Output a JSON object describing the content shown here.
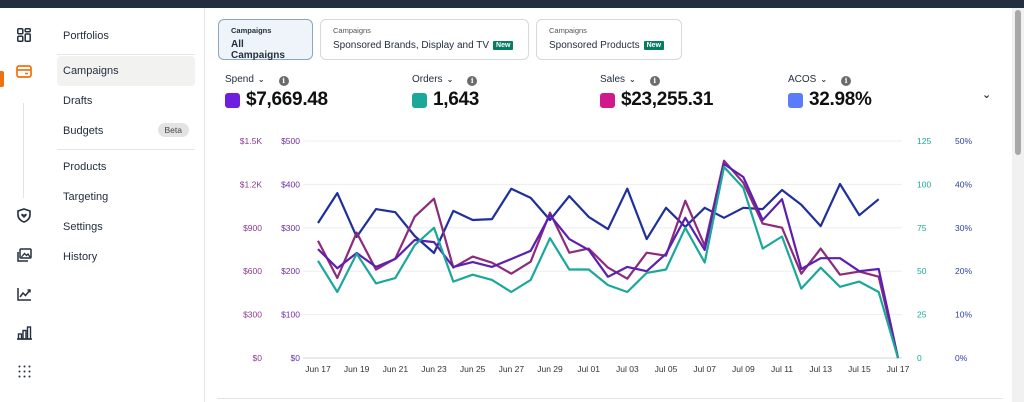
{
  "rail": {
    "icons": [
      "dashboard-icon",
      "campaigns-icon",
      "brand-protection-icon",
      "media-icon",
      "reports-icon",
      "measurement-icon",
      "apps-grid-icon"
    ]
  },
  "subnav": {
    "items": [
      {
        "label": "Portfolios"
      },
      {
        "label": "Campaigns",
        "active": true
      },
      {
        "label": "Drafts"
      },
      {
        "label": "Budgets",
        "badge": "Beta"
      },
      {
        "label": "Products"
      },
      {
        "label": "Targeting"
      },
      {
        "label": "Settings"
      },
      {
        "label": "History"
      }
    ]
  },
  "tabs": [
    {
      "caption": "Campaigns",
      "label": "All Campaigns",
      "active": true
    },
    {
      "caption": "Campaigns",
      "label": "Sponsored Brands, Display and TV",
      "badge": "New"
    },
    {
      "caption": "Campaigns",
      "label": "Sponsored Products",
      "badge": "New"
    }
  ],
  "metrics": [
    {
      "name": "Spend",
      "value": "$7,669.48",
      "color": "#6f1ee0"
    },
    {
      "name": "Orders",
      "value": "1,643",
      "color": "#1ba89a"
    },
    {
      "name": "Sales",
      "value": "$23,255.31",
      "color": "#d0198c"
    },
    {
      "name": "ACOS",
      "value": "32.98%",
      "color": "#5b7cfa"
    }
  ],
  "info_glyph": "i",
  "caret_glyph": "⌄",
  "collapse_glyph": "⌄",
  "chart_data": {
    "type": "line",
    "x": [
      "Jun 17",
      "Jun 18",
      "Jun 19",
      "Jun 20",
      "Jun 21",
      "Jun 22",
      "Jun 23",
      "Jun 24",
      "Jun 25",
      "Jun 26",
      "Jun 27",
      "Jun 28",
      "Jun 29",
      "Jun 30",
      "Jul 01",
      "Jul 02",
      "Jul 03",
      "Jul 04",
      "Jul 05",
      "Jul 06",
      "Jul 07",
      "Jul 08",
      "Jul 09",
      "Jul 10",
      "Jul 11",
      "Jul 12",
      "Jul 13",
      "Jul 14",
      "Jul 15",
      "Jul 16",
      "Jul 17"
    ],
    "x_tick_labels": [
      "Jun 17",
      "Jun 19",
      "Jun 21",
      "Jun 23",
      "Jun 25",
      "Jun 27",
      "Jun 29",
      "Jul 01",
      "Jul 03",
      "Jul 05",
      "Jul 07",
      "Jul 09",
      "Jul 11",
      "Jul 13",
      "Jul 15",
      "Jul 17"
    ],
    "axes": {
      "sales_axis": {
        "ticks": [
          "$0",
          "$300",
          "$600",
          "$900",
          "$1.2K",
          "$1.5K"
        ],
        "range": [
          0,
          1500
        ],
        "color": "#8b3a8b"
      },
      "spend_axis": {
        "ticks": [
          "$0",
          "$100",
          "$200",
          "$300",
          "$400",
          "$500"
        ],
        "range": [
          0,
          500
        ],
        "color": "#6a2fa0"
      },
      "orders_axis": {
        "ticks": [
          "0",
          "25",
          "50",
          "75",
          "100",
          "125"
        ],
        "range": [
          0,
          125
        ],
        "color": "#1ba89a"
      },
      "acos_axis": {
        "ticks": [
          "0%",
          "10%",
          "20%",
          "30%",
          "40%",
          "50%"
        ],
        "range": [
          0,
          50
        ],
        "color": "#2b3f9e"
      }
    },
    "grid": true,
    "series": [
      {
        "name": "ACOS",
        "axis": "acos_axis",
        "color": "#1f2f9c",
        "values": [
          31.1,
          38.0,
          27.9,
          34.3,
          33.6,
          28.1,
          24.2,
          33.9,
          31.8,
          32.0,
          39.0,
          36.9,
          31.8,
          37.3,
          32.5,
          29.7,
          39.0,
          27.4,
          34.6,
          30.2,
          34.6,
          32.3,
          34.6,
          34.3,
          38.7,
          35.3,
          30.4,
          40.1,
          32.9,
          36.6,
          null
        ]
      },
      {
        "name": "Sales",
        "axis": "sales_axis",
        "color": "#8c2a7c",
        "values": [
          811,
          553,
          867,
          611,
          687,
          977,
          1101,
          625,
          701,
          659,
          583,
          666,
          1005,
          728,
          756,
          625,
          548,
          728,
          707,
          1087,
          776,
          1364,
          1212,
          929,
          901,
          583,
          756,
          576,
          597,
          562,
          0
        ]
      },
      {
        "name": "Spend",
        "axis": "spend_axis",
        "color": "#5d1fb0",
        "values": [
          251,
          207,
          242,
          210,
          228,
          272,
          267,
          210,
          221,
          210,
          228,
          247,
          329,
          274,
          249,
          187,
          210,
          200,
          240,
          323,
          249,
          447,
          417,
          318,
          366,
          205,
          230,
          230,
          200,
          205,
          0
        ]
      },
      {
        "name": "Orders",
        "axis": "orders_axis",
        "color": "#1ba89a",
        "values": [
          56,
          38,
          60,
          43,
          46,
          65,
          75,
          44,
          48,
          45,
          38,
          45,
          69,
          51,
          51,
          42,
          38,
          49,
          51,
          75,
          55,
          110,
          98,
          63,
          70,
          40,
          52,
          41,
          44,
          38,
          0
        ]
      }
    ],
    "legend": "top (metric tiles)"
  }
}
